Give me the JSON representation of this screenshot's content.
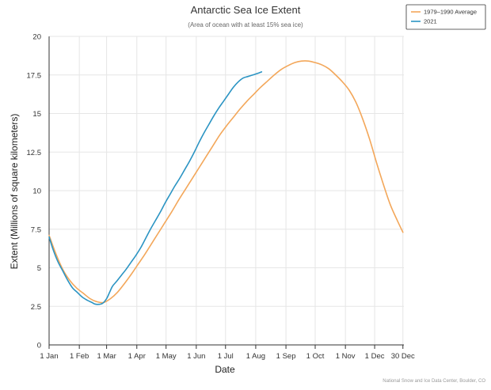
{
  "chart_data": {
    "type": "line",
    "title": "Antarctic Sea Ice Extent",
    "subtitle": "(Area of ocean with at least 15% sea ice)",
    "xlabel": "Date",
    "ylabel": "Extent (Millions of square kilometers)",
    "credit": "National Snow and Ice Data Center, Boulder, CO",
    "x_unit": "day of year",
    "xlim": [
      1,
      365
    ],
    "ylim": [
      0,
      20
    ],
    "grid": true,
    "legend_position": "top-right",
    "x_ticks": [
      {
        "day": 1,
        "label": "1 Jan"
      },
      {
        "day": 32,
        "label": "1 Feb"
      },
      {
        "day": 60,
        "label": "1 Mar"
      },
      {
        "day": 91,
        "label": "1 Apr"
      },
      {
        "day": 121,
        "label": "1 May"
      },
      {
        "day": 152,
        "label": "1 Jun"
      },
      {
        "day": 182,
        "label": "1 Jul"
      },
      {
        "day": 213,
        "label": "1 Aug"
      },
      {
        "day": 244,
        "label": "1 Sep"
      },
      {
        "day": 274,
        "label": "1 Oct"
      },
      {
        "day": 305,
        "label": "1 Nov"
      },
      {
        "day": 335,
        "label": "1 Dec"
      },
      {
        "day": 364,
        "label": "30 Dec"
      }
    ],
    "y_ticks": [
      {
        "value": 0,
        "label": "0"
      },
      {
        "value": 2.5,
        "label": "2.5"
      },
      {
        "value": 5,
        "label": "5"
      },
      {
        "value": 7.5,
        "label": "7.5"
      },
      {
        "value": 10,
        "label": "10"
      },
      {
        "value": 12.5,
        "label": "12.5"
      },
      {
        "value": 15,
        "label": "15"
      },
      {
        "value": 17.5,
        "label": "17.5"
      },
      {
        "value": 20,
        "label": "20"
      }
    ],
    "series": [
      {
        "name": "1979–1990 Average",
        "color": "#f3a75a",
        "x": [
          1,
          8,
          15,
          22,
          29,
          36,
          43,
          50,
          57,
          64,
          71,
          78,
          85,
          92,
          99,
          106,
          113,
          120,
          127,
          134,
          141,
          148,
          155,
          162,
          169,
          176,
          183,
          190,
          197,
          204,
          211,
          218,
          225,
          232,
          239,
          246,
          253,
          260,
          267,
          274,
          281,
          288,
          295,
          302,
          309,
          316,
          323,
          330,
          337,
          344,
          351,
          358,
          364
        ],
        "y": [
          7.1,
          5.9,
          4.9,
          4.2,
          3.7,
          3.35,
          3.0,
          2.8,
          2.75,
          3.0,
          3.4,
          3.95,
          4.55,
          5.2,
          5.85,
          6.55,
          7.25,
          7.95,
          8.65,
          9.4,
          10.1,
          10.8,
          11.5,
          12.2,
          12.9,
          13.6,
          14.2,
          14.75,
          15.3,
          15.8,
          16.25,
          16.7,
          17.1,
          17.5,
          17.85,
          18.1,
          18.3,
          18.4,
          18.4,
          18.3,
          18.15,
          17.9,
          17.5,
          17.05,
          16.5,
          15.7,
          14.6,
          13.3,
          11.8,
          10.4,
          9.1,
          8.1,
          7.3
        ]
      },
      {
        "name": "2021",
        "color": "#2b94c3",
        "x": [
          1,
          5,
          10,
          15,
          20,
          25,
          30,
          35,
          40,
          45,
          48,
          52,
          56,
          60,
          63,
          66,
          70,
          75,
          80,
          85,
          90,
          95,
          100,
          105,
          110,
          115,
          120,
          125,
          130,
          135,
          140,
          145,
          150,
          155,
          160,
          165,
          170,
          175,
          180,
          185,
          190,
          195,
          200,
          205,
          210,
          215,
          219
        ],
        "y": [
          7.0,
          6.2,
          5.4,
          4.8,
          4.2,
          3.7,
          3.4,
          3.1,
          2.9,
          2.75,
          2.65,
          2.63,
          2.7,
          3.0,
          3.4,
          3.8,
          4.1,
          4.5,
          4.9,
          5.35,
          5.8,
          6.3,
          6.9,
          7.5,
          8.05,
          8.6,
          9.2,
          9.75,
          10.3,
          10.8,
          11.35,
          11.9,
          12.5,
          13.15,
          13.75,
          14.3,
          14.85,
          15.35,
          15.8,
          16.25,
          16.7,
          17.05,
          17.3,
          17.4,
          17.5,
          17.6,
          17.7
        ]
      }
    ]
  }
}
